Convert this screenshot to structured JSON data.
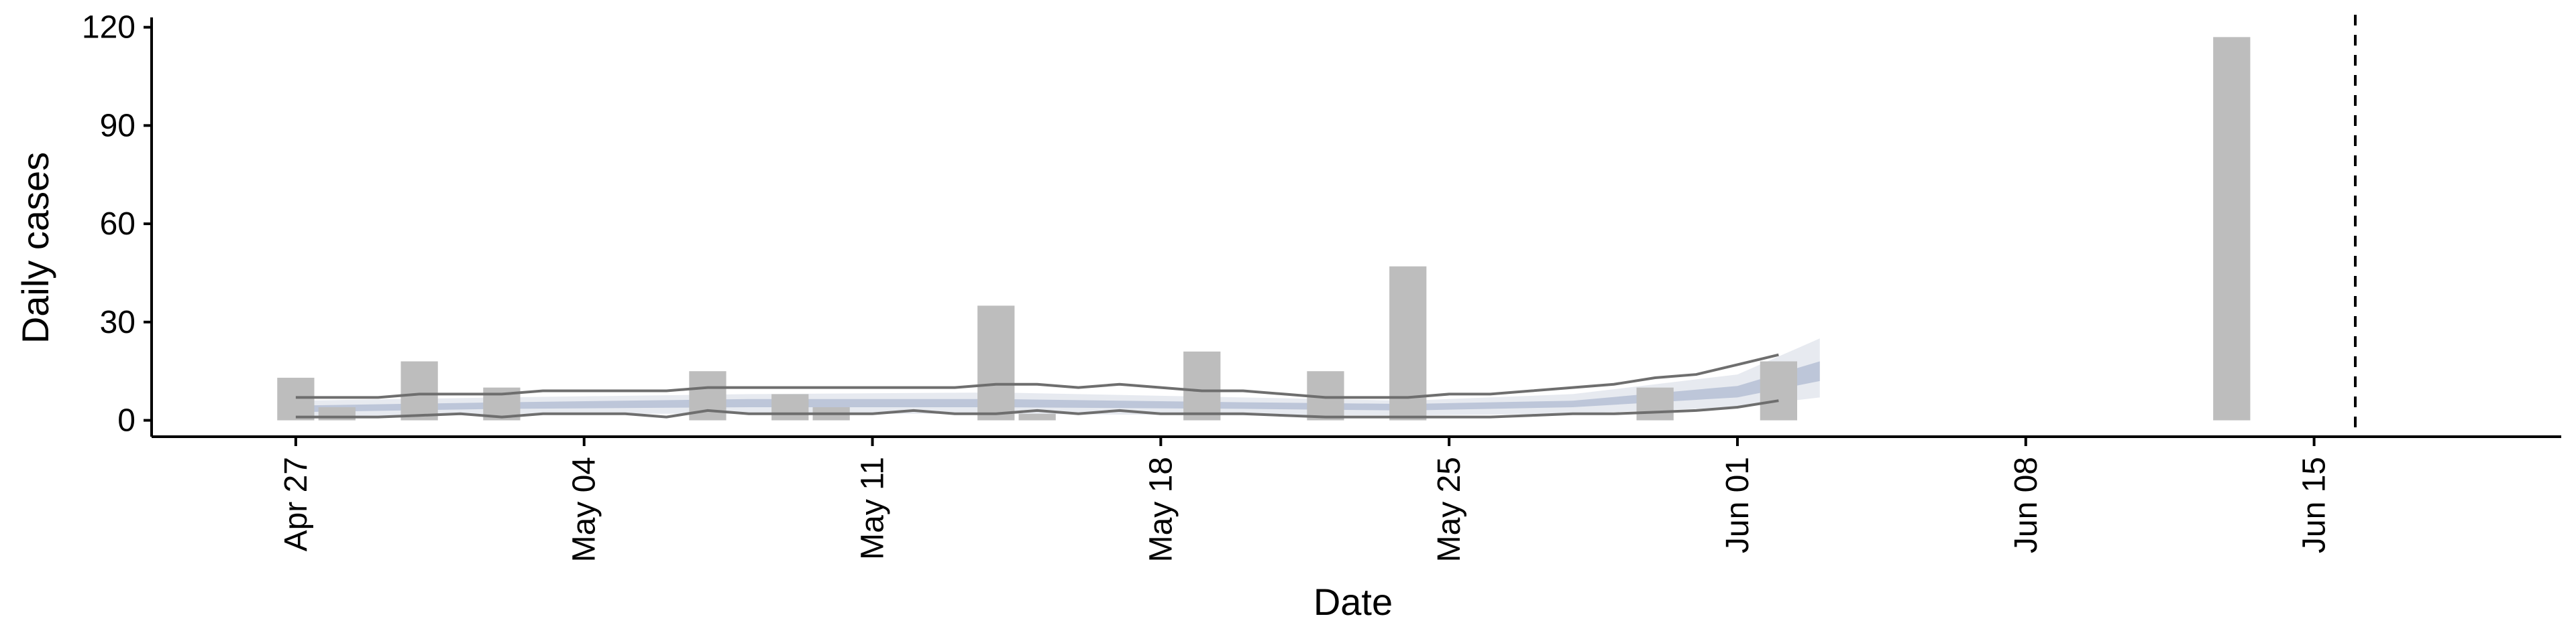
{
  "chart_data": {
    "type": "bar",
    "xlabel": "Date",
    "ylabel": "Daily cases",
    "xlim": [
      "2020-04-23T12:00",
      "2020-06-21"
    ],
    "ylim": [
      -5,
      123
    ],
    "x_ticks": [
      {
        "date": "2020-04-27",
        "label": "Apr 27"
      },
      {
        "date": "2020-05-04",
        "label": "May 04"
      },
      {
        "date": "2020-05-11",
        "label": "May 11"
      },
      {
        "date": "2020-05-18",
        "label": "May 18"
      },
      {
        "date": "2020-05-25",
        "label": "May 25"
      },
      {
        "date": "2020-06-01",
        "label": "Jun 01"
      },
      {
        "date": "2020-06-08",
        "label": "Jun 08"
      },
      {
        "date": "2020-06-15",
        "label": "Jun 15"
      }
    ],
    "y_ticks": [
      0,
      30,
      60,
      90,
      120
    ],
    "series": [
      {
        "type": "bar",
        "color": "#bdbdbd",
        "x": [
          "2020-04-27",
          "2020-04-28",
          "2020-04-30",
          "2020-05-02",
          "2020-05-07",
          "2020-05-09",
          "2020-05-10",
          "2020-05-14",
          "2020-05-15",
          "2020-05-19",
          "2020-05-22",
          "2020-05-24",
          "2020-05-30",
          "2020-06-02",
          "2020-06-13"
        ],
        "values": [
          13,
          4,
          18,
          10,
          15,
          8,
          4,
          35,
          2,
          21,
          15,
          47,
          10,
          18,
          117
        ]
      },
      {
        "type": "band",
        "color": "#d4d8e3",
        "x": [
          "2020-04-27",
          "2020-05-02",
          "2020-05-08",
          "2020-05-14",
          "2020-05-20",
          "2020-05-24",
          "2020-05-28",
          "2020-06-01",
          "2020-06-03"
        ],
        "lower": [
          1,
          2,
          2,
          2,
          1.5,
          1.5,
          2,
          4,
          7
        ],
        "upper": [
          6,
          7,
          8,
          8.5,
          7,
          6,
          8,
          14,
          25
        ]
      },
      {
        "type": "band",
        "color": "#b5bfd5",
        "x": [
          "2020-04-27",
          "2020-05-02",
          "2020-05-08",
          "2020-05-14",
          "2020-05-20",
          "2020-05-24",
          "2020-05-28",
          "2020-06-01",
          "2020-06-03"
        ],
        "lower": [
          2.5,
          3.5,
          4,
          4,
          3.5,
          3,
          4,
          7,
          12
        ],
        "upper": [
          4.5,
          5.5,
          6.5,
          6.5,
          5.5,
          5,
          6,
          10.5,
          18
        ]
      },
      {
        "type": "line",
        "color": "#6e6e6e",
        "x": [
          "2020-04-27",
          "2020-04-29",
          "2020-04-30",
          "2020-05-01",
          "2020-05-02",
          "2020-05-03",
          "2020-05-04",
          "2020-05-05",
          "2020-05-06",
          "2020-05-07",
          "2020-05-08",
          "2020-05-10",
          "2020-05-12",
          "2020-05-13",
          "2020-05-14",
          "2020-05-15",
          "2020-05-16",
          "2020-05-17",
          "2020-05-18",
          "2020-05-19",
          "2020-05-20",
          "2020-05-21",
          "2020-05-22",
          "2020-05-23",
          "2020-05-24",
          "2020-05-25",
          "2020-05-26",
          "2020-05-27",
          "2020-05-28",
          "2020-05-29",
          "2020-05-30",
          "2020-05-31",
          "2020-06-01",
          "2020-06-02"
        ],
        "values": [
          7,
          7,
          8,
          8,
          8,
          9,
          9,
          9,
          9,
          10,
          10,
          10,
          10,
          10,
          11,
          11,
          10,
          11,
          10,
          9,
          9,
          8,
          7,
          7,
          7,
          8,
          8,
          9,
          10,
          11,
          13,
          14,
          17,
          20
        ]
      },
      {
        "type": "line",
        "color": "#6e6e6e",
        "x": [
          "2020-04-27",
          "2020-04-28",
          "2020-04-29",
          "2020-04-30",
          "2020-05-01",
          "2020-05-02",
          "2020-05-03",
          "2020-05-04",
          "2020-05-05",
          "2020-05-06",
          "2020-05-07",
          "2020-05-08",
          "2020-05-09",
          "2020-05-10",
          "2020-05-11",
          "2020-05-12",
          "2020-05-13",
          "2020-05-14",
          "2020-05-15",
          "2020-05-16",
          "2020-05-17",
          "2020-05-18",
          "2020-05-19",
          "2020-05-20",
          "2020-05-21",
          "2020-05-22",
          "2020-05-23",
          "2020-05-24",
          "2020-05-25",
          "2020-05-26",
          "2020-05-27",
          "2020-05-28",
          "2020-05-29",
          "2020-05-30",
          "2020-05-31",
          "2020-06-01",
          "2020-06-02"
        ],
        "values": [
          1,
          1,
          1,
          1.5,
          2,
          1,
          2,
          2,
          2,
          1,
          3,
          2,
          2,
          2,
          2,
          3,
          2,
          2,
          3,
          2,
          3,
          2,
          2,
          2,
          1.5,
          1,
          1,
          1,
          1,
          1,
          1.5,
          2,
          2,
          2.5,
          3,
          4,
          6
        ]
      }
    ],
    "reference_line": {
      "x": "2020-06-16",
      "style": "dashed",
      "color": "#000000"
    },
    "grid": false,
    "legend": "none"
  }
}
